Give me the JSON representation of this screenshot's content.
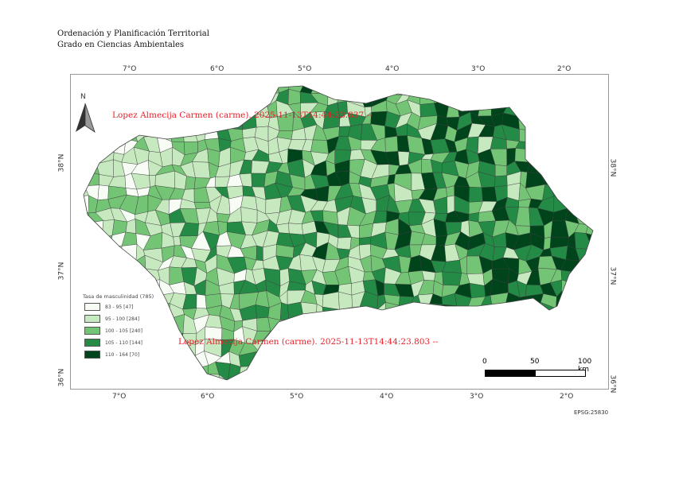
{
  "header": {
    "line1": "Ordenación y Planificación Territorial",
    "line2": "Grado en Ciencias Ambientales"
  },
  "watermarks": [
    "Lopez Almecija Carmen (carme). 2025-11-13T14:44:23.837 --",
    "Lopez Almecija Carmen (carme). 2025-11-13T14:44:23.803 --"
  ],
  "grid": {
    "lon_labels": [
      "7°O",
      "6°O",
      "5°O",
      "4°O",
      "3°O",
      "2°O"
    ],
    "lat_labels": [
      "38°N",
      "37°N",
      "36°N"
    ]
  },
  "north_arrow": {
    "label": "N"
  },
  "legend": {
    "title": "Tasa de masculinidad (785)",
    "classes": [
      {
        "label": "83 - 95 [47]",
        "color": "#f7fcf5"
      },
      {
        "label": "95 - 100 [284]",
        "color": "#c7e9c0"
      },
      {
        "label": "100 - 105 [240]",
        "color": "#74c476"
      },
      {
        "label": "105 - 110 [144]",
        "color": "#238b45"
      },
      {
        "label": "110 - 164 [70]",
        "color": "#00441b"
      }
    ]
  },
  "scale_bar": {
    "labels": [
      "0",
      "50",
      "100 km"
    ]
  },
  "crs": "EPSG:25830"
}
